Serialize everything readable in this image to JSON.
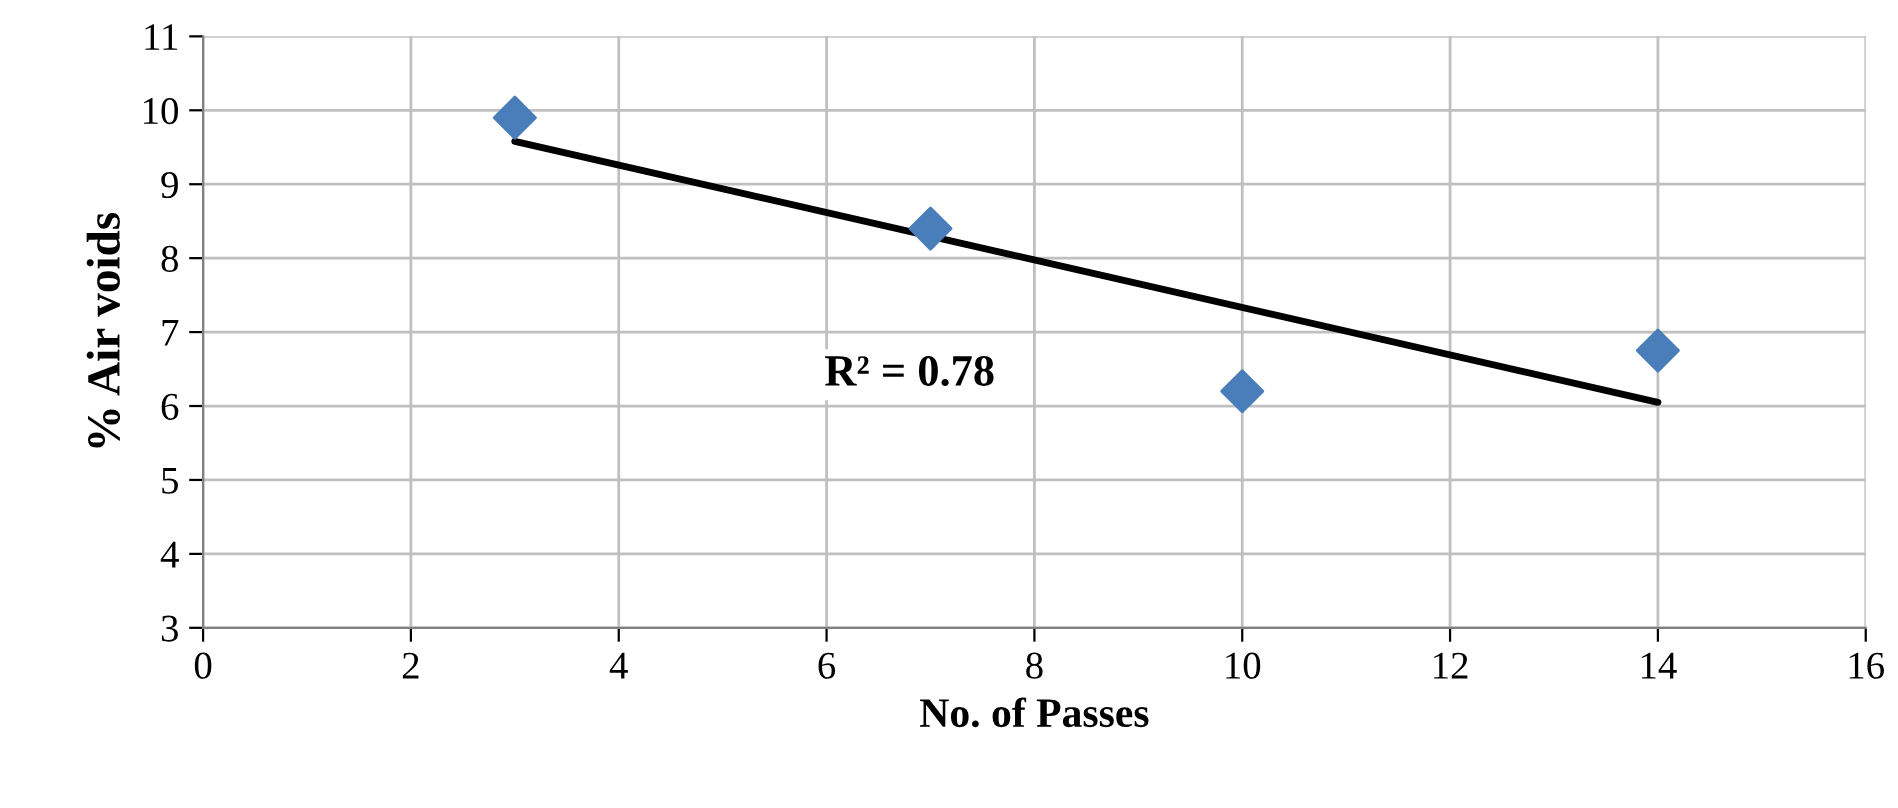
{
  "chart_data": {
    "type": "scatter",
    "xlabel": "No. of Passes",
    "ylabel": "% Air voids",
    "series": [
      {
        "type": "scatter",
        "color": "#4a7ebb",
        "marker": "diamond",
        "x": [
          3,
          7,
          10,
          14
        ],
        "values": [
          9.9,
          8.4,
          6.2,
          6.75
        ]
      },
      {
        "type": "line",
        "color": "#000000",
        "marker": "none",
        "line_style": "solid",
        "x": [
          3,
          14
        ],
        "values": [
          9.58,
          6.05
        ]
      }
    ],
    "annotations": [
      "R² = 0.78"
    ],
    "xlim": [
      0,
      16
    ],
    "xticks": [
      0,
      2,
      4,
      6,
      8,
      10,
      12,
      14,
      16
    ],
    "ylim": [
      3,
      11
    ],
    "yticks": [
      3,
      4,
      5,
      6,
      7,
      8,
      9,
      10,
      11
    ],
    "grid": true
  }
}
